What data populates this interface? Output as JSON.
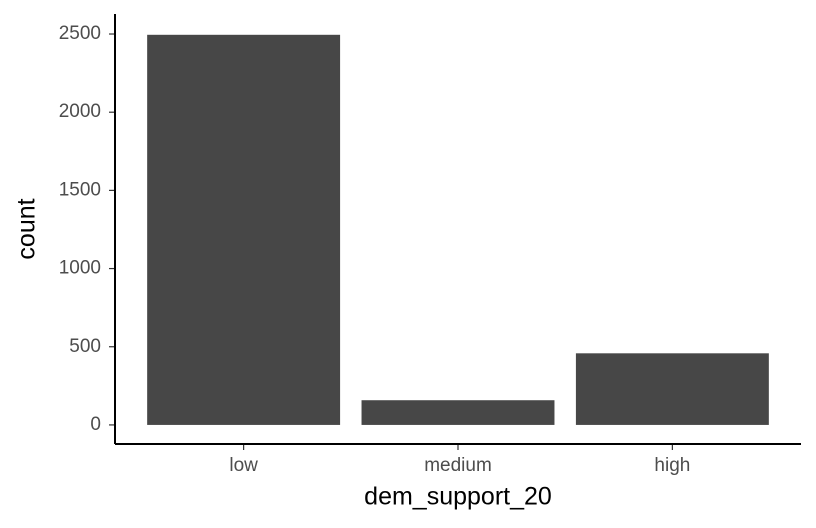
{
  "chart_data": {
    "type": "bar",
    "x_label": "dem_support_20",
    "y_label": "count",
    "categories": [
      "low",
      "medium",
      "high"
    ],
    "values": [
      2495,
      158,
      458
    ],
    "color": "#474747",
    "ylim": [
      -122,
      2628
    ],
    "yticks": [
      0,
      500,
      1000,
      1500,
      2000,
      2500
    ],
    "grid": false
  }
}
